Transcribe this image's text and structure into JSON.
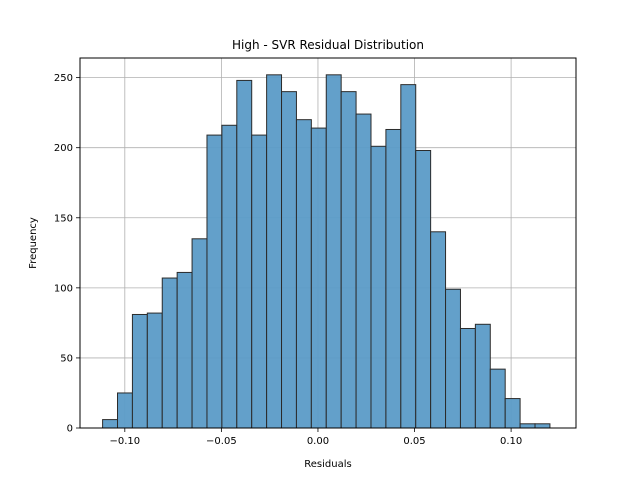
{
  "chart_data": {
    "type": "bar",
    "title": "High - SVR Residual Distribution",
    "xlabel": "Residuals",
    "ylabel": "Frequency",
    "xlim": [
      -0.1232,
      0.1336
    ],
    "ylim": [
      0,
      264
    ],
    "grid": true,
    "bar_color": "#5b9bc7",
    "edge_color": "#2b2b2b",
    "bin_start": -0.1115,
    "bin_width": 0.00772,
    "values": [
      6,
      25,
      81,
      82,
      107,
      111,
      135,
      209,
      216,
      248,
      209,
      252,
      240,
      220,
      214,
      252,
      240,
      224,
      201,
      213,
      245,
      198,
      140,
      99,
      71,
      74,
      42,
      21,
      3,
      3
    ],
    "xticks": [
      -0.1,
      -0.05,
      0.0,
      0.05,
      0.1
    ],
    "xtick_labels": [
      "−0.10",
      "−0.05",
      "0.00",
      "0.05",
      "0.10"
    ],
    "yticks": [
      0,
      50,
      100,
      150,
      200,
      250
    ],
    "ytick_labels": [
      "0",
      "50",
      "100",
      "150",
      "200",
      "250"
    ]
  }
}
